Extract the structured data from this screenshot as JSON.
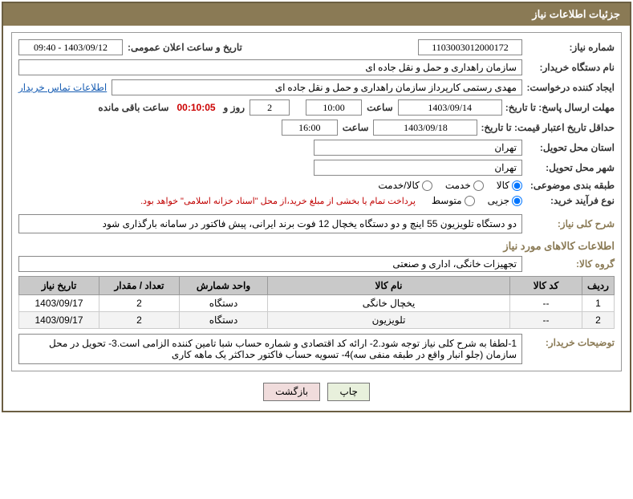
{
  "title_bar": "جزئیات اطلاعات نیاز",
  "labels": {
    "need_no": "شماره نیاز:",
    "announce": "تاریخ و ساعت اعلان عمومی:",
    "buyer_org": "نام دستگاه خریدار:",
    "requester": "ایجاد کننده درخواست:",
    "contact_link": "اطلاعات تماس خریدار",
    "resp_deadline": "مهلت ارسال پاسخ: تا تاریخ:",
    "hour": "ساعت",
    "days_and": "روز و",
    "remain": "ساعت باقی مانده",
    "price_valid": "حداقل تاریخ اعتبار قیمت: تا تاریخ:",
    "deliv_prov": "استان محل تحویل:",
    "deliv_city": "شهر محل تحویل:",
    "category": "طبقه بندی موضوعی:",
    "proc_type": "نوع فرآیند خرید:",
    "need_desc": "شرح کلی نیاز:",
    "group": "گروه کالا:",
    "buyer_notes": "توضیحات خریدار:"
  },
  "fields": {
    "need_no": "1103003012000172",
    "announce": "1403/09/12 - 09:40",
    "buyer_org": "سازمان راهداری و حمل و نقل جاده ای",
    "requester": "مهدی رستمی کارپرداز سازمان راهداری و حمل و نقل جاده ای",
    "resp_date": "1403/09/14",
    "resp_time": "10:00",
    "remain_days": "2",
    "remain_time": "00:10:05",
    "price_date": "1403/09/18",
    "price_time": "16:00",
    "province": "تهران",
    "city": "تهران",
    "proc_note": "پرداخت تمام یا بخشی از مبلغ خرید،از محل \"اسناد خزانه اسلامی\" خواهد بود.",
    "need_desc": "دو دستگاه تلویزیون 55 اینچ و دو دستگاه یخچال 12 فوت برند ایرانی، پیش فاکتور در سامانه بارگذاری شود",
    "group": "تجهیزات خانگی، اداری و صنعتی",
    "buyer_notes": "1-لطفا به شرح کلی نیاز توجه شود.2- ارائه کد اقتصادی و شماره حساب شبا تامین کننده الزامی است.3- تحویل در محل سازمان (جلو انبار واقع در طبقه منفی سه)4- تسویه حساب فاکتور حداکثر یک ماهه کاری"
  },
  "radios": {
    "cat": {
      "goods": "کالا",
      "service": "خدمت",
      "both": "کالا/خدمت"
    },
    "proc": {
      "minor": "جزیی",
      "medium": "متوسط"
    }
  },
  "section_goods": "اطلاعات کالاهای مورد نیاز",
  "table": {
    "headers": {
      "row": "ردیف",
      "code": "کد کالا",
      "name": "نام کالا",
      "unit": "واحد شمارش",
      "qty": "تعداد / مقدار",
      "need_date": "تاریخ نیاز"
    },
    "rows": [
      {
        "n": "1",
        "code": "--",
        "name": "یخچال خانگی",
        "unit": "دستگاه",
        "qty": "2",
        "date": "1403/09/17"
      },
      {
        "n": "2",
        "code": "--",
        "name": "تلویزیون",
        "unit": "دستگاه",
        "qty": "2",
        "date": "1403/09/17"
      }
    ]
  },
  "buttons": {
    "print": "چاپ",
    "back": "بازگشت"
  }
}
